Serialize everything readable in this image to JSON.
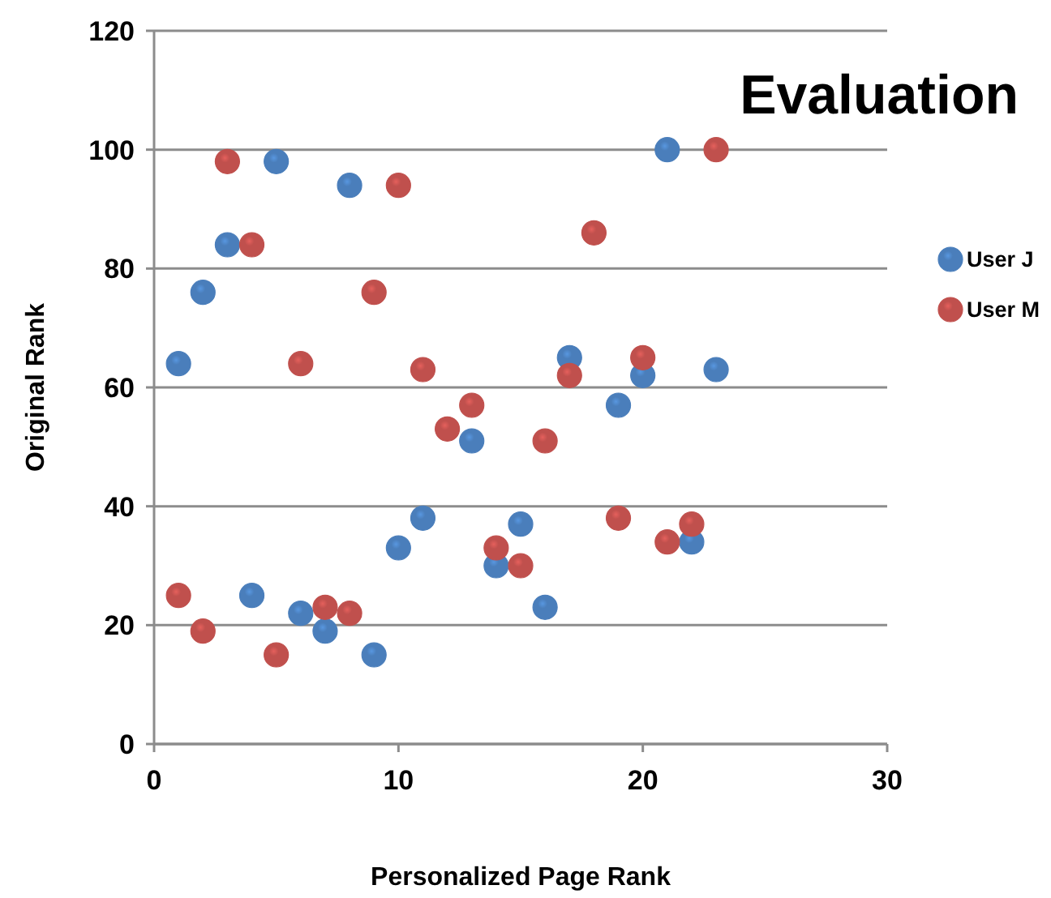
{
  "chart_data": {
    "type": "scatter",
    "title": "Evaluation",
    "xlabel": "Personalized Page Rank",
    "ylabel": "Original  Rank",
    "xlim": [
      0,
      30
    ],
    "xticks": [
      0,
      10,
      20,
      30
    ],
    "ylim": [
      0,
      120
    ],
    "yticks": [
      0,
      20,
      40,
      60,
      80,
      100,
      120
    ],
    "grid": "y",
    "legend": "right",
    "marker": "circle",
    "series": [
      {
        "name": "User J",
        "color": "#4a7ebb",
        "x": [
          1,
          2,
          3,
          5,
          8,
          21,
          17,
          20,
          23,
          19,
          4,
          6,
          7,
          9,
          10,
          11,
          13,
          15,
          14,
          16,
          22
        ],
        "values": [
          64,
          76,
          84,
          98,
          94,
          100,
          65,
          62,
          63,
          57,
          25,
          22,
          19,
          15,
          33,
          38,
          51,
          37,
          30,
          23,
          34
        ]
      },
      {
        "name": "User M",
        "color": "#c0504d",
        "x": [
          3,
          10,
          4,
          9,
          6,
          11,
          13,
          12,
          23,
          18,
          17,
          20,
          16,
          19,
          22,
          21,
          14,
          15,
          1,
          2,
          5,
          7,
          8
        ],
        "values": [
          98,
          94,
          84,
          76,
          64,
          63,
          57,
          53,
          100,
          86,
          62,
          65,
          51,
          38,
          37,
          34,
          33,
          30,
          25,
          19,
          15,
          23,
          22
        ]
      }
    ]
  }
}
